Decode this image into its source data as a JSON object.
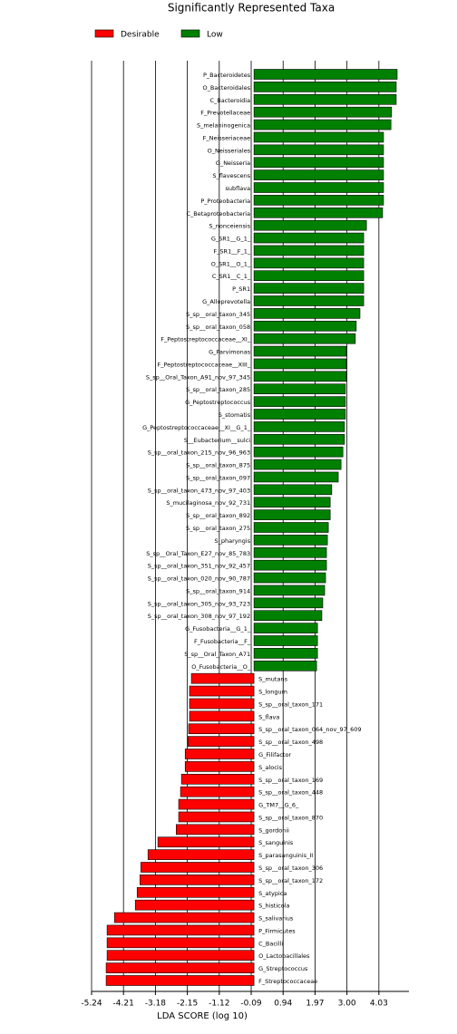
{
  "chart_data": {
    "type": "barh",
    "title": "Significantly Represented Taxa",
    "xlabel": "LDA SCORE (log 10)",
    "categories": [
      "P_Bacteroidetes",
      "O_Bacteroidales",
      "C_Bacteroidia",
      "F_Prevotellaceae",
      "S_melaninogenica",
      "F_Neisseriaceae",
      "O_Neisseriales",
      "G_Neisseria",
      "S_flavescens",
      "subflava",
      "P_Proteobacteria",
      "C_Betaproteobacteria",
      "S_nonceiensis",
      "G_SR1__G_1_",
      "F_SR1__F_1_",
      "O_SR1__O_1_",
      "C_SR1__C_1_",
      "P_SR1",
      "G_Alloprevotella",
      "S_sp__oral_taxon_345",
      "S_sp__oral_taxon_058",
      "F_Peptostreptococcaceae__XI_",
      "G_Parvimonas",
      "F_Peptostreptococcaceae__XIII_",
      "S_sp__Oral_Taxon_A91_nov_97_345",
      "S_sp__oral_taxon_285",
      "G_Peptostreptococcus",
      "S_stomatis",
      "G_Peptostreptococcaceae__XI__G_1_",
      "S__Eubacterium__sulci",
      "S_sp__oral_taxon_215_nov_96_963",
      "S_sp__oral_taxon_875",
      "S_sp__oral_taxon_097",
      "S_sp__oral_taxon_473_nov_97_403",
      "S_mucilaginosa_nov_92_731",
      "S_sp__oral_taxon_892",
      "S_sp__oral_taxon_275",
      "S_pharyngis",
      "S_sp__Oral_Taxon_E27_nov_85_783",
      "S_sp__oral_taxon_351_nov_92_457",
      "S_sp__oral_taxon_020_nov_90_787",
      "S_sp__oral_taxon_914",
      "S_sp__oral_taxon_305_nov_93_723",
      "S_sp__oral_taxon_308_nov_97_192",
      "G_Fusobacteria__G_1_",
      "F_Fusobacteria__F_",
      "S_sp__Oral_Taxon_A71",
      "O_Fusobacteria__O_",
      "S_mutans",
      "S_longum",
      "S_sp__oral_taxon_171",
      "S_flava",
      "S_sp__oral_taxon_064_nov_97_609",
      "S_sp__oral_taxon_498",
      "G_Filifactor",
      "S_alocis",
      "S_sp__oral_taxon_169",
      "S_sp__oral_taxon_448",
      "G_TM7__G_6_",
      "S_sp__oral_taxon_870",
      "S_gordonii",
      "S_sanguinis",
      "S_parasanguinis_II",
      "S_sp__oral_taxon_306",
      "S_sp__oral_taxon_172",
      "S_atypica",
      "S_histicola",
      "S_salivarius",
      "P_Firmicutes",
      "C_Bacilli",
      "O_Lactobacillales",
      "G_Streptococcus",
      "F_Streptococcaceae"
    ],
    "series": [
      {
        "name": "Desirable",
        "color": "#ff0000",
        "values": [
          null,
          null,
          null,
          null,
          null,
          null,
          null,
          null,
          null,
          null,
          null,
          null,
          null,
          null,
          null,
          null,
          null,
          null,
          null,
          null,
          null,
          null,
          null,
          null,
          null,
          null,
          null,
          null,
          null,
          null,
          null,
          null,
          null,
          null,
          null,
          null,
          null,
          null,
          null,
          null,
          null,
          null,
          null,
          null,
          null,
          null,
          null,
          null,
          -2.02,
          -2.08,
          -2.08,
          -2.08,
          -2.11,
          -2.13,
          -2.22,
          -2.22,
          -2.34,
          -2.37,
          -2.43,
          -2.43,
          -2.51,
          -3.1,
          -3.42,
          -3.65,
          -3.68,
          -3.77,
          -3.83,
          -4.5,
          -4.74,
          -4.74,
          -4.74,
          -4.77,
          -4.77
        ]
      },
      {
        "name": "Low",
        "color": "#008000",
        "values": [
          4.62,
          4.59,
          4.59,
          4.44,
          4.42,
          4.18,
          4.18,
          4.18,
          4.18,
          4.18,
          4.18,
          4.15,
          3.63,
          3.54,
          3.54,
          3.54,
          3.54,
          3.54,
          3.54,
          3.42,
          3.3,
          3.27,
          2.98,
          2.98,
          2.98,
          2.95,
          2.95,
          2.95,
          2.92,
          2.92,
          2.87,
          2.81,
          2.72,
          2.51,
          2.46,
          2.46,
          2.4,
          2.37,
          2.34,
          2.34,
          2.31,
          2.28,
          2.22,
          2.19,
          2.05,
          2.05,
          2.05,
          2.02,
          null,
          null,
          null,
          null,
          null,
          null,
          null,
          null,
          null,
          null,
          null,
          null,
          null,
          null,
          null,
          null,
          null,
          null,
          null,
          null,
          null,
          null,
          null,
          null,
          null
        ]
      }
    ],
    "xlim": [
      -5.24,
      5.0
    ],
    "xticks": [
      -5.24,
      -4.21,
      -3.18,
      -2.15,
      -1.12,
      -0.09,
      0.94,
      1.97,
      {
        "value": 3,
        "label": "3.00"
      },
      4.03
    ],
    "grid": true
  }
}
